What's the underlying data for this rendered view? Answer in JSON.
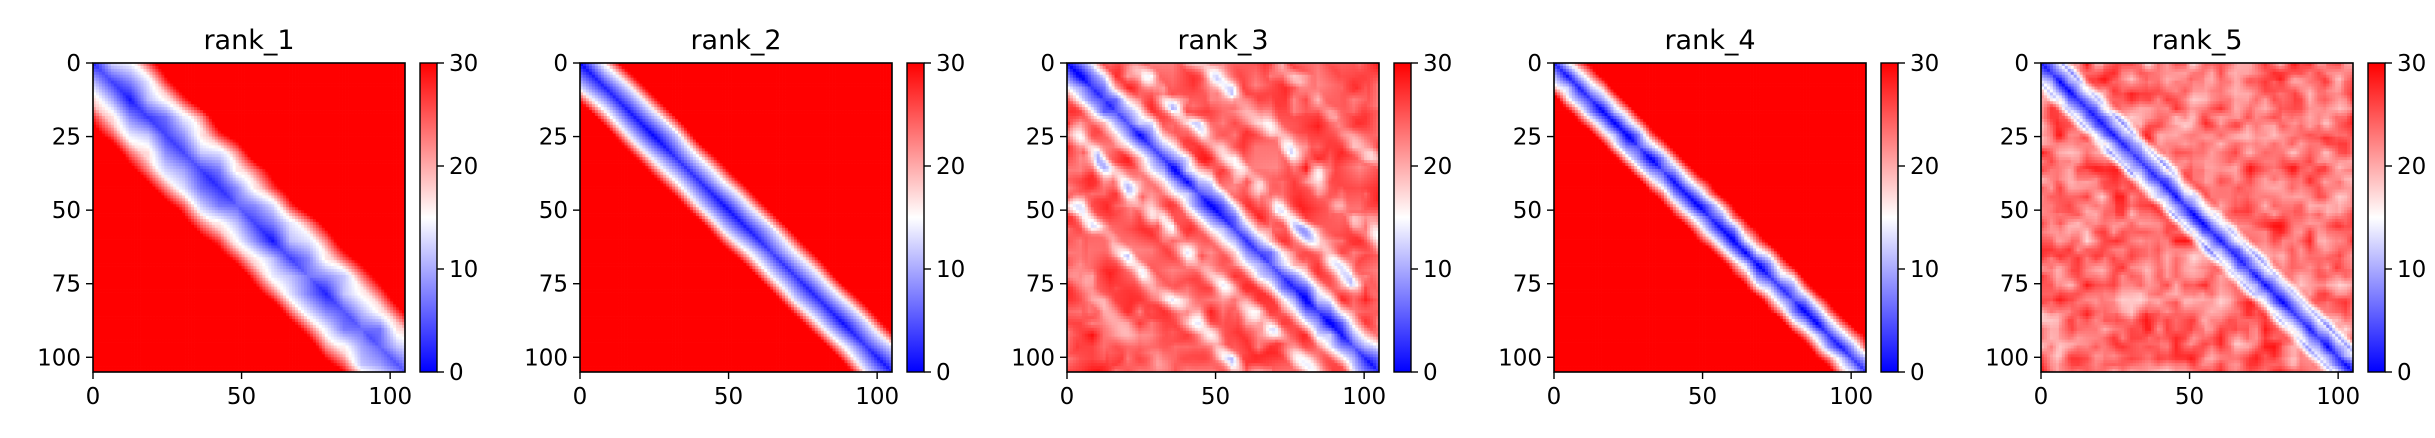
{
  "chart_data": [
    {
      "type": "heatmap",
      "title": "rank_1",
      "xticks": [
        "0",
        "50",
        "100"
      ],
      "yticks": [
        "0",
        "25",
        "50",
        "75",
        "100"
      ],
      "xlim": [
        0,
        105
      ],
      "ylim": [
        105,
        0
      ],
      "colorbar": {
        "ticks": [
          "0",
          "10",
          "20",
          "30"
        ],
        "range": [
          0,
          30
        ],
        "colormap": "bwr"
      },
      "band_width": 14,
      "pattern": "wide-diagonal-band"
    },
    {
      "type": "heatmap",
      "title": "rank_2",
      "xticks": [
        "0",
        "50",
        "100"
      ],
      "yticks": [
        "0",
        "25",
        "50",
        "75",
        "100"
      ],
      "xlim": [
        0,
        105
      ],
      "ylim": [
        105,
        0
      ],
      "colorbar": {
        "ticks": [
          "0",
          "10",
          "20",
          "30"
        ],
        "range": [
          0,
          30
        ],
        "colormap": "bwr"
      },
      "band_width": 8,
      "pattern": "diagonal-band"
    },
    {
      "type": "heatmap",
      "title": "rank_3",
      "xticks": [
        "0",
        "50",
        "100"
      ],
      "yticks": [
        "0",
        "25",
        "50",
        "75",
        "100"
      ],
      "xlim": [
        0,
        105
      ],
      "ylim": [
        105,
        0
      ],
      "colorbar": {
        "ticks": [
          "0",
          "10",
          "20",
          "30"
        ],
        "range": [
          0,
          30
        ],
        "colormap": "bwr"
      },
      "band_width": 6,
      "pattern": "diagonal-band-with-parallel-stripes"
    },
    {
      "type": "heatmap",
      "title": "rank_4",
      "xticks": [
        "0",
        "50",
        "100"
      ],
      "yticks": [
        "0",
        "25",
        "50",
        "75",
        "100"
      ],
      "xlim": [
        0,
        105
      ],
      "ylim": [
        105,
        0
      ],
      "colorbar": {
        "ticks": [
          "0",
          "10",
          "20",
          "30"
        ],
        "range": [
          0,
          30
        ],
        "colormap": "bwr"
      },
      "band_width": 6,
      "pattern": "diagonal-band-with-parallel-stripes"
    },
    {
      "type": "heatmap",
      "title": "rank_5",
      "xticks": [
        "0",
        "50",
        "100"
      ],
      "yticks": [
        "0",
        "25",
        "50",
        "75",
        "100"
      ],
      "xlim": [
        0,
        105
      ],
      "ylim": [
        105,
        0
      ],
      "colorbar": {
        "ticks": [
          "0",
          "10",
          "20",
          "30"
        ],
        "range": [
          0,
          30
        ],
        "colormap": "bwr"
      },
      "band_width": 6,
      "pattern": "diagonal-band-mottled"
    }
  ],
  "colors": {
    "low": "#0000ff",
    "mid": "#ffffff",
    "high": "#ff0000"
  }
}
